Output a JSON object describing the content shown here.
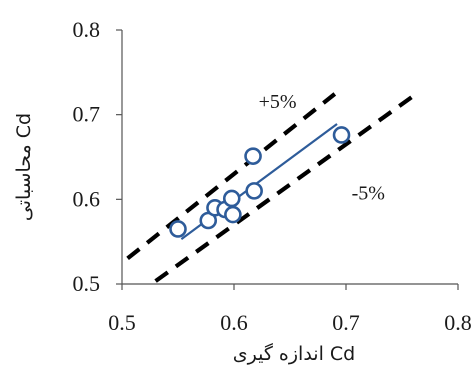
{
  "chart_data": {
    "type": "scatter",
    "xlabel": "اندازه گیری Cd",
    "ylabel": "محاسباتی Cd",
    "xlim": [
      0.5,
      0.8
    ],
    "ylim": [
      0.5,
      0.8
    ],
    "xticks": [
      "0.5",
      "0.6",
      "0.7",
      "0.8"
    ],
    "yticks": [
      "0.5",
      "0.6",
      "0.7",
      "0.8"
    ],
    "grid": false,
    "legend": "none",
    "series": [
      {
        "marker": "open-circle",
        "color": "#2e5c9a",
        "points": [
          {
            "x": 0.55,
            "y": 0.565
          },
          {
            "x": 0.577,
            "y": 0.575
          },
          {
            "x": 0.583,
            "y": 0.59
          },
          {
            "x": 0.592,
            "y": 0.588
          },
          {
            "x": 0.598,
            "y": 0.601
          },
          {
            "x": 0.599,
            "y": 0.582
          },
          {
            "x": 0.618,
            "y": 0.61
          },
          {
            "x": 0.617,
            "y": 0.651
          },
          {
            "x": 0.696,
            "y": 0.676
          }
        ]
      }
    ],
    "trendline": {
      "color": "#2e5c9a",
      "from": {
        "x": 0.553,
        "y": 0.553
      },
      "to": {
        "x": 0.692,
        "y": 0.689
      }
    },
    "bounds": [
      {
        "label": "+5%",
        "color": "#000000",
        "style": "dashed",
        "factor": 1.05,
        "x_from": 0.505,
        "x_to": 0.69
      },
      {
        "label": "-5%",
        "color": "#000000",
        "style": "dashed",
        "factor": 0.95,
        "x_from": 0.53,
        "x_to": 0.76
      }
    ],
    "annotations": [
      {
        "text": "+5%",
        "x": 0.622,
        "y": 0.708
      },
      {
        "text": "-5%",
        "x": 0.705,
        "y": 0.6
      }
    ]
  }
}
